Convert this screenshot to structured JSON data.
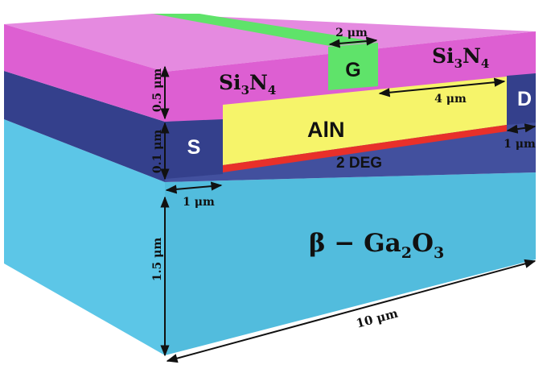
{
  "layers": {
    "passivation_left": {
      "base": "Si",
      "sub1": "3",
      "mid": "N",
      "sub2": "4"
    },
    "passivation_right": {
      "base": "Si",
      "sub1": "3",
      "mid": "N",
      "sub2": "4"
    },
    "barrier": "AlN",
    "channel": "2 DEG",
    "substrate": {
      "prefix": "β − Ga",
      "sub1": "2",
      "mid": "O",
      "sub2": "3"
    }
  },
  "terminals": {
    "gate": "G",
    "source": "S",
    "drain": "D"
  },
  "dimensions": {
    "gate_width": "2 μm",
    "gate_drain_spacing": "4 μm",
    "source_width": "1 μm",
    "drain_width": "1 μm",
    "passivation_thickness": "0.5 μm",
    "barrier_thickness": "0.1 μm",
    "substrate_thickness": "1.5 μm",
    "device_length": "10 μm"
  },
  "colors": {
    "passivation": "#dd5fd2",
    "passivation_top": "#e58ae0",
    "dark_band": "#34408c",
    "dark_band_top": "#42509e",
    "substrate": "#5cc6e7",
    "substrate_side": "#52bcdd",
    "gate": "#5fe36a",
    "barrier": "#f6f46a",
    "channel": "#e8302a"
  }
}
